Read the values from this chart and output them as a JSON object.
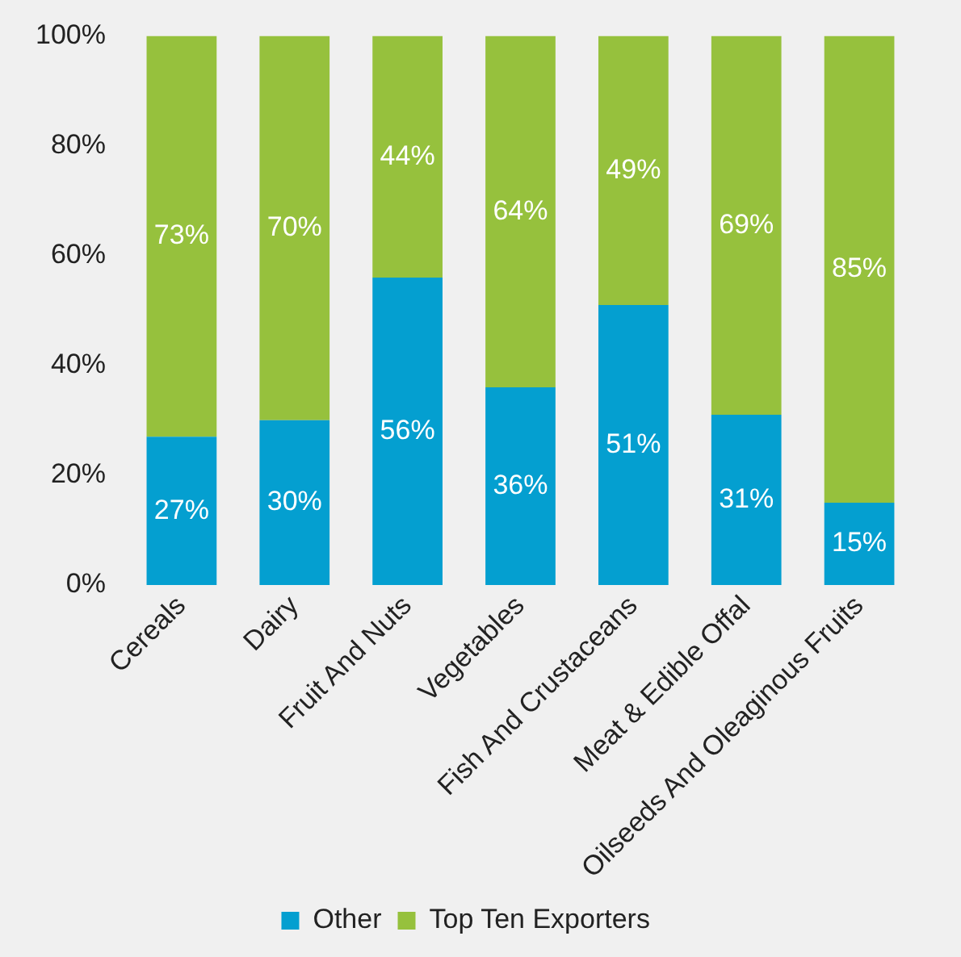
{
  "chart_data": {
    "type": "bar",
    "stacked": true,
    "categories": [
      "Cereals",
      "Dairy",
      "Fruit And Nuts",
      "Vegetables",
      "Fish And Crustaceans",
      "Meat & Edible Offal",
      "Oilseeds And Oleaginous Fruits"
    ],
    "series": [
      {
        "name": "Other",
        "color": "#049fd0",
        "values": [
          27,
          30,
          56,
          36,
          51,
          31,
          15
        ],
        "value_labels": [
          "27%",
          "30%",
          "56%",
          "36%",
          "51%",
          "31%",
          "15%"
        ]
      },
      {
        "name": "Top Ten Exporters",
        "color": "#96c13d",
        "values": [
          73,
          70,
          44,
          64,
          49,
          69,
          85
        ],
        "value_labels": [
          "73%",
          "70%",
          "44%",
          "64%",
          "49%",
          "69%",
          "85%"
        ]
      }
    ],
    "ylim": [
      0,
      100
    ],
    "yticks": [
      {
        "value": 0,
        "label": "0%"
      },
      {
        "value": 20,
        "label": "20%"
      },
      {
        "value": 40,
        "label": "40%"
      },
      {
        "value": 60,
        "label": "60%"
      },
      {
        "value": 80,
        "label": "80%"
      },
      {
        "value": 100,
        "label": "100%"
      }
    ],
    "grid": false,
    "legend": "bottom"
  }
}
